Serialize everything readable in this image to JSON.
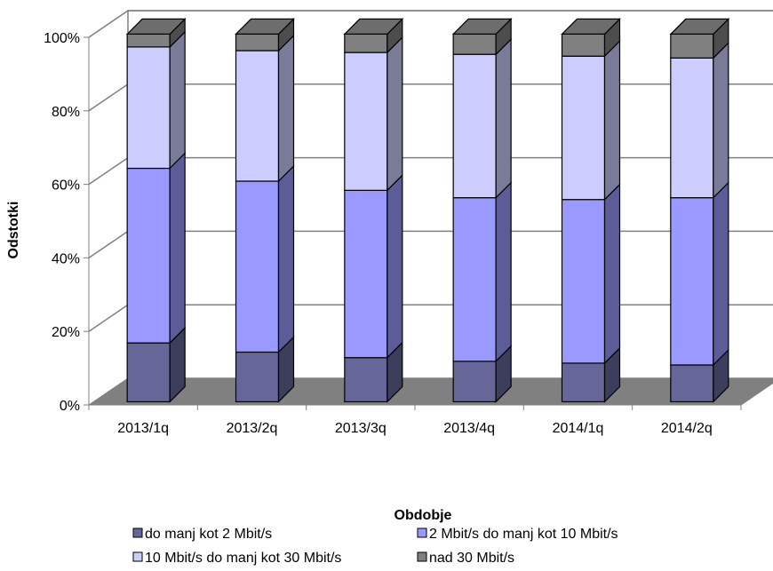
{
  "chart_data": {
    "type": "bar",
    "stacked": "percent",
    "three_d": true,
    "categories": [
      "2013/1q",
      "2013/2q",
      "2013/3q",
      "2013/4q",
      "2014/1q",
      "2014/2q"
    ],
    "series": [
      {
        "name": "do manj kot 2 Mbit/s",
        "values": [
          16,
          13.5,
          12,
          11,
          10.5,
          10
        ],
        "color": "#666699"
      },
      {
        "name": "2 Mbit/s do manj kot 10 Mbit/s",
        "values": [
          47.5,
          46.5,
          45.5,
          44.5,
          44.5,
          45.5
        ],
        "color": "#9999ff"
      },
      {
        "name": "10 Mbit/s do manj kot 30 Mbit/s",
        "values": [
          33,
          35.5,
          37.5,
          39,
          39,
          38
        ],
        "color": "#ccccff"
      },
      {
        "name": "nad 30 Mbit/s",
        "values": [
          3.5,
          4.5,
          5,
          5.5,
          6,
          6.5
        ],
        "color": "#808080"
      }
    ],
    "xlabel": "Obdobje",
    "ylabel": "Odstotki",
    "ylim": [
      0,
      100
    ],
    "yticks": [
      "0%",
      "20%",
      "40%",
      "60%",
      "80%",
      "100%"
    ],
    "grid": true,
    "legend_position": "bottom"
  }
}
